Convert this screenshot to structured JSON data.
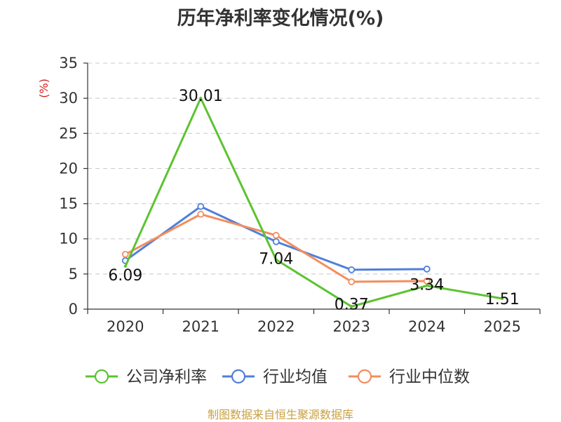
{
  "chart_data": {
    "type": "line",
    "title": "历年净利率变化情况(%)",
    "unit_label": "(%)",
    "categories": [
      "2020",
      "2021",
      "2022",
      "2023",
      "2024",
      "2025"
    ],
    "ylim": [
      0,
      35
    ],
    "yticks": [
      0,
      5,
      10,
      15,
      20,
      25,
      30,
      35
    ],
    "grid": true,
    "legend_position": "bottom",
    "series": [
      {
        "name": "公司净利率",
        "color": "#5cc330",
        "values": [
          6.09,
          30.01,
          7.04,
          0.37,
          3.34,
          1.51
        ],
        "data_labels": [
          "6.09",
          "30.01",
          "7.04",
          "0.37",
          "3.34",
          "1.51"
        ]
      },
      {
        "name": "行业均值",
        "color": "#4f7fd9",
        "values": [
          6.9,
          14.6,
          9.6,
          5.6,
          5.7,
          null
        ]
      },
      {
        "name": "行业中位数",
        "color": "#f28e5e",
        "values": [
          7.8,
          13.5,
          10.5,
          3.9,
          4.0,
          null
        ]
      }
    ]
  },
  "source": "制图数据来自恒生聚源数据库"
}
